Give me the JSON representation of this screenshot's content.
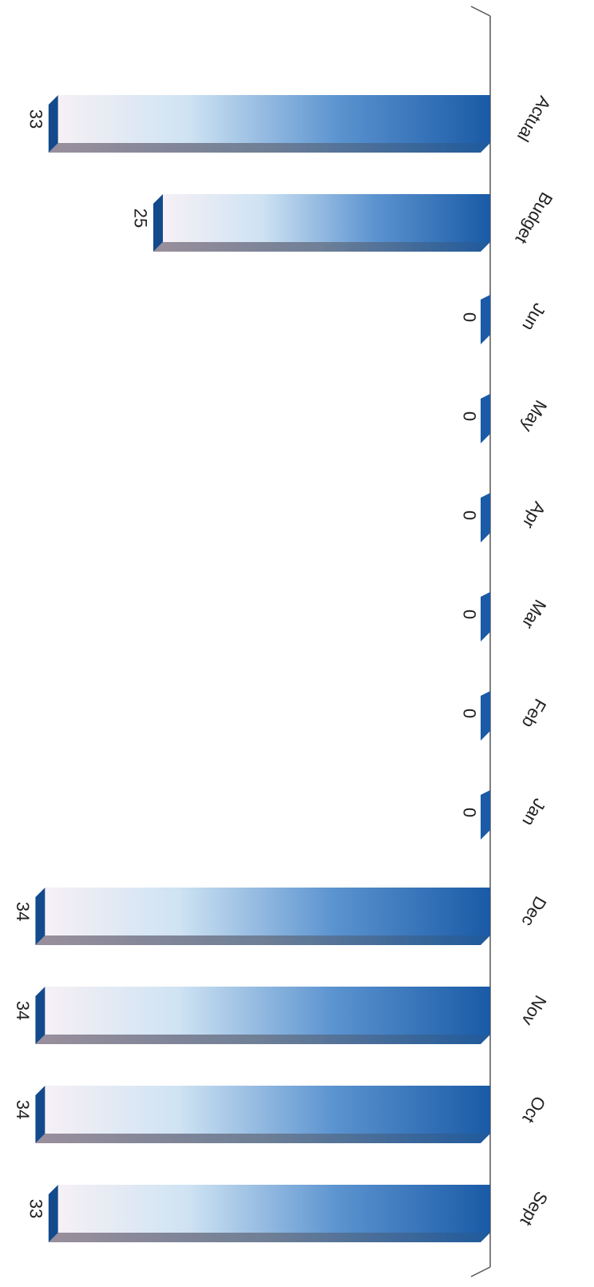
{
  "chart_data": {
    "type": "bar",
    "orientation": "horizontal",
    "categories": [
      "Sept",
      "Oct",
      "Nov",
      "Dec",
      "Jan",
      "Feb",
      "Mar",
      "Apr",
      "May",
      "Jun",
      "Budget",
      "Actual"
    ],
    "values": [
      33,
      34,
      34,
      34,
      0,
      0,
      0,
      0,
      0,
      0,
      25,
      33
    ],
    "data_labels": [
      "33",
      "34",
      "34",
      "34",
      "0",
      "0",
      "0",
      "0",
      "0",
      "0",
      "25",
      "33"
    ],
    "title": "",
    "xlabel": "",
    "ylabel": "",
    "xlim": [
      0,
      35
    ],
    "grid": false,
    "style": "3d",
    "rendered_rotation": "upside-down (rotated 180 degrees)",
    "colors": {
      "bar_dark": "#1a5aa6",
      "bar_mid": "#5b93cf",
      "bar_light": "#cfe3f3",
      "bar_tip": "#f6f0f5",
      "bar_top_face": "#6e7f96",
      "bar_side_face": "#134a8c",
      "axis_wall": "#555555",
      "label_text": "#222222"
    }
  }
}
